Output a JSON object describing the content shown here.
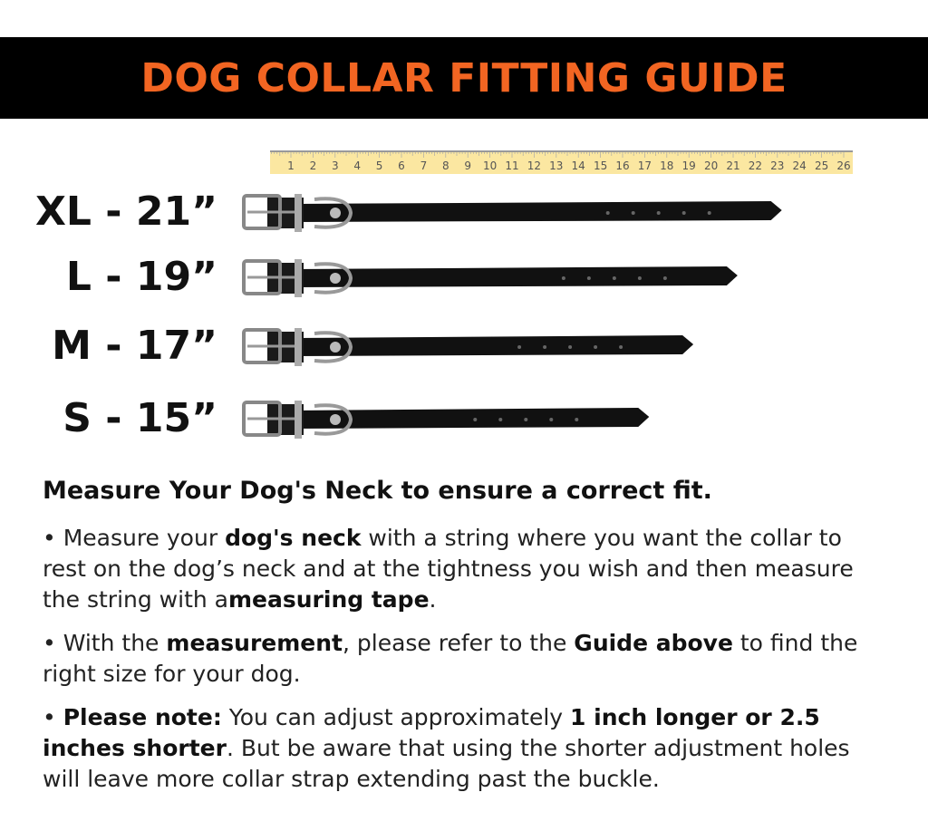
{
  "title": "DOG COLLAR FITTING GUIDE",
  "ruler": {
    "numbers": [
      1,
      2,
      3,
      4,
      5,
      6,
      7,
      8,
      9,
      10,
      11,
      12,
      13,
      14,
      15,
      16,
      17,
      18,
      19,
      20,
      21,
      22,
      23,
      24,
      25,
      26
    ],
    "color": "#fbe7a1"
  },
  "sizes": [
    {
      "label": "XL - 21”",
      "inches": 21
    },
    {
      "label": "L - 19”",
      "inches": 19
    },
    {
      "label": "M - 17”",
      "inches": 17
    },
    {
      "label": "S - 15”",
      "inches": 15
    }
  ],
  "heading": "Measure Your Dog's Neck to ensure a correct fit.",
  "bullets": [
    {
      "parts": [
        [
          "•   Measure your ",
          false
        ],
        [
          "dog's neck",
          true
        ],
        [
          " with a string where you want the collar to rest on the dog’s neck and at the tightness you wish and then measure the string with a",
          false
        ],
        [
          "measuring tape",
          true
        ],
        [
          ".",
          false
        ]
      ]
    },
    {
      "parts": [
        [
          "•   With the ",
          false
        ],
        [
          "measurement",
          true
        ],
        [
          ", please refer to the ",
          false
        ],
        [
          "Guide above",
          true
        ],
        [
          " to find the right size for your dog.",
          false
        ]
      ]
    },
    {
      "parts": [
        [
          "•   ",
          false
        ],
        [
          "Please note:",
          true
        ],
        [
          " You can adjust approximately ",
          false
        ],
        [
          "1 inch longer or 2.5 inches shorter",
          true
        ],
        [
          ". But be aware that using the shorter adjustment holes will leave more collar strap extending past the buckle.",
          false
        ]
      ]
    }
  ],
  "colors": {
    "banner": "#000000",
    "title": "#f26522"
  }
}
